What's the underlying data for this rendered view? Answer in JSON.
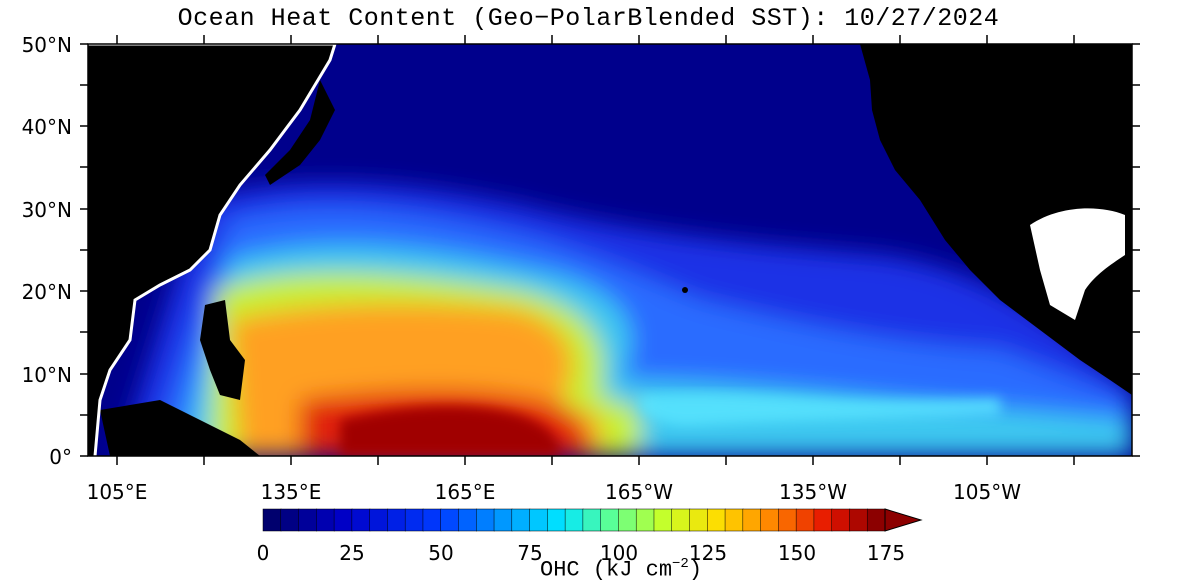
{
  "title": "Ocean Heat Content (Geo−PolarBlended SST): 10/27/2024",
  "lat_labels": [
    "50°N",
    "40°N",
    "30°N",
    "20°N",
    "10°N",
    "0°"
  ],
  "lon_labels": [
    "105°E",
    "135°E",
    "165°E",
    "165°W",
    "135°W",
    "105°W"
  ],
  "colorbar": {
    "ticks": [
      "0",
      "25",
      "50",
      "75",
      "100",
      "125",
      "150",
      "175"
    ],
    "title": "OHC (kJ cm",
    "title_exp": "−2",
    "title_close": ")",
    "min": 0,
    "max": 175
  },
  "colors": {
    "land": "#000000",
    "coast": "#ffffff",
    "low": "#00008c",
    "high": "#9a0000"
  }
}
